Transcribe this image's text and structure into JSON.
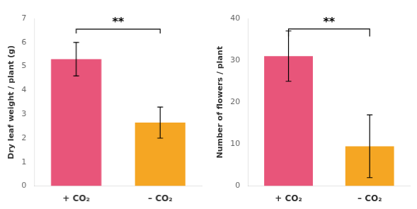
{
  "chart_data": [
    {
      "type": "bar",
      "categories": [
        "+ CO₂",
        "– CO₂"
      ],
      "values": [
        5.3,
        2.65
      ],
      "errors": [
        0.7,
        0.65
      ],
      "ylabel": "Dry leaf weight / plant (g)",
      "ylim": [
        0,
        7
      ],
      "yticks": [
        0,
        1,
        2,
        3,
        4,
        5,
        6,
        7
      ],
      "colors": [
        "#e8557a",
        "#f5a623"
      ],
      "grid": false,
      "annotations": [
        {
          "text": "**",
          "from": 0,
          "to": 1,
          "y": 6.55,
          "bracket_drop": 0.18
        }
      ]
    },
    {
      "type": "bar",
      "categories": [
        "+ CO₂",
        "– CO₂"
      ],
      "values": [
        31,
        9.5
      ],
      "errors": [
        6.0,
        7.5
      ],
      "ylabel": "Number of flowers / plant",
      "ylim": [
        0,
        40
      ],
      "yticks": [
        0,
        10,
        20,
        30,
        40
      ],
      "colors": [
        "#e8557a",
        "#f5a623"
      ],
      "grid": false,
      "annotations": [
        {
          "text": "**",
          "from": 0,
          "to": 1,
          "y": 37.5,
          "bracket_drop": 1.8
        }
      ]
    }
  ]
}
